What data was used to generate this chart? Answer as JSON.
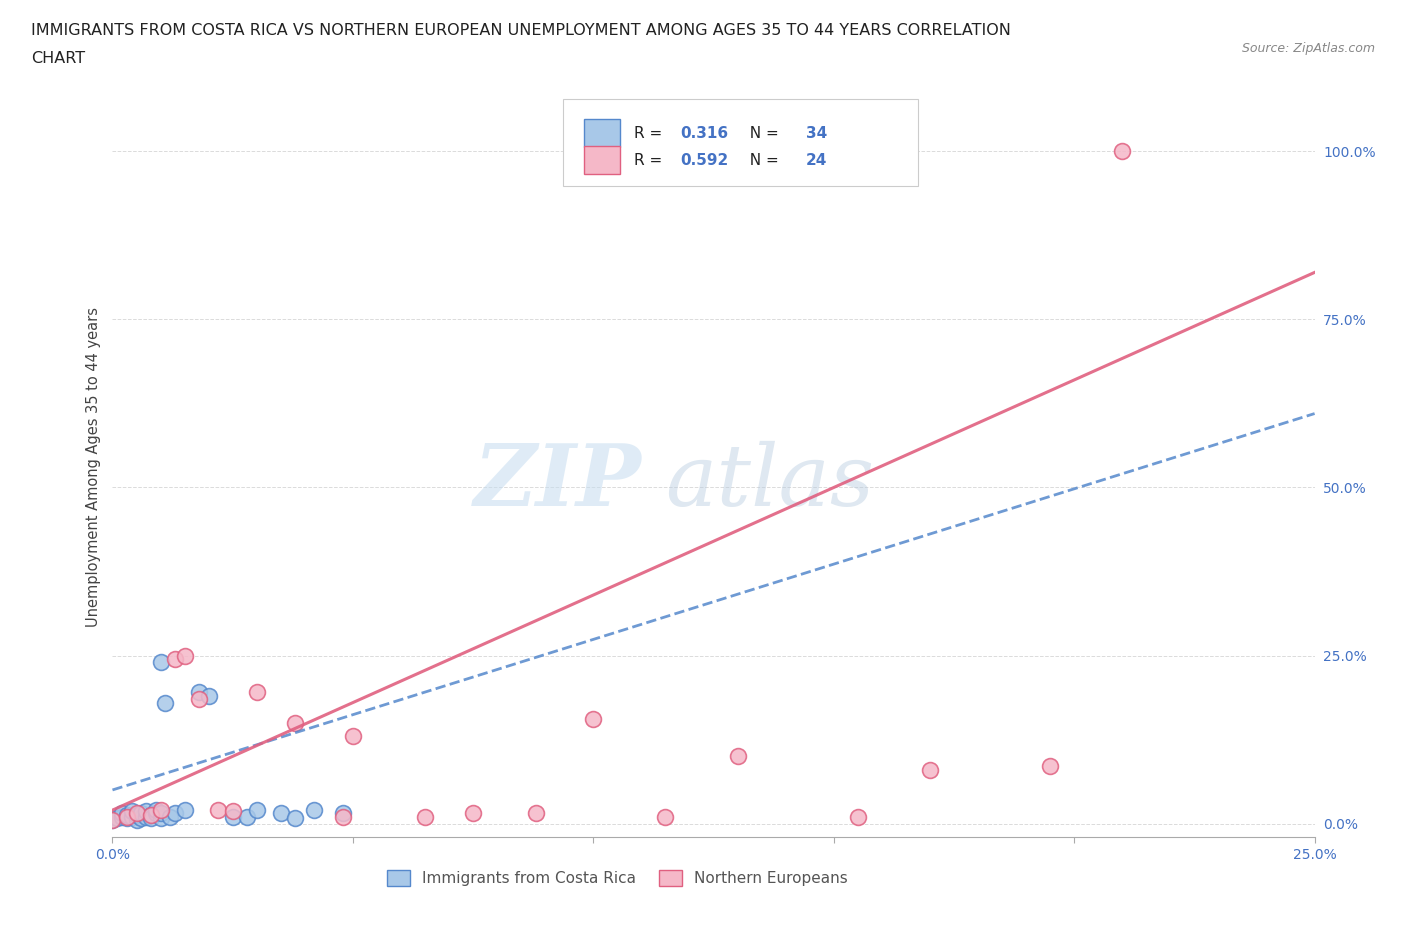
{
  "title_line1": "IMMIGRANTS FROM COSTA RICA VS NORTHERN EUROPEAN UNEMPLOYMENT AMONG AGES 35 TO 44 YEARS CORRELATION",
  "title_line2": "CHART",
  "source": "Source: ZipAtlas.com",
  "ylabel": "Unemployment Among Ages 35 to 44 years",
  "xlim": [
    0,
    0.25
  ],
  "ylim": [
    -0.02,
    1.08
  ],
  "ytick_vals": [
    0.0,
    0.25,
    0.5,
    0.75,
    1.0
  ],
  "ytick_labels": [
    "0.0%",
    "25.0%",
    "50.0%",
    "75.0%",
    "100.0%"
  ],
  "xtick_vals": [
    0.0,
    0.05,
    0.1,
    0.15,
    0.2,
    0.25
  ],
  "xtick_labels": [
    "0.0%",
    "",
    "",
    "",
    "",
    "25.0%"
  ],
  "color_blue_fill": "#a8c8e8",
  "color_blue_edge": "#5588cc",
  "color_pink_fill": "#f5b8c8",
  "color_pink_edge": "#e06080",
  "color_blue_line": "#5588cc",
  "color_pink_line": "#e06080",
  "color_text_blue": "#4472c4",
  "color_grid": "#cccccc",
  "blue_scatter_x": [
    0.0,
    0.001,
    0.002,
    0.002,
    0.003,
    0.003,
    0.004,
    0.004,
    0.005,
    0.005,
    0.006,
    0.006,
    0.007,
    0.007,
    0.008,
    0.008,
    0.009,
    0.009,
    0.01,
    0.01,
    0.011,
    0.012,
    0.013,
    0.015,
    0.018,
    0.02,
    0.025,
    0.028,
    0.03,
    0.035,
    0.038,
    0.042,
    0.048,
    0.01
  ],
  "blue_scatter_y": [
    0.005,
    0.008,
    0.01,
    0.015,
    0.008,
    0.012,
    0.01,
    0.018,
    0.006,
    0.012,
    0.008,
    0.015,
    0.01,
    0.018,
    0.012,
    0.008,
    0.015,
    0.02,
    0.008,
    0.015,
    0.18,
    0.01,
    0.015,
    0.02,
    0.195,
    0.19,
    0.01,
    0.01,
    0.02,
    0.015,
    0.008,
    0.02,
    0.015,
    0.24
  ],
  "pink_scatter_x": [
    0.0,
    0.003,
    0.005,
    0.008,
    0.01,
    0.013,
    0.015,
    0.018,
    0.022,
    0.025,
    0.03,
    0.038,
    0.048,
    0.05,
    0.065,
    0.075,
    0.088,
    0.1,
    0.115,
    0.13,
    0.155,
    0.17,
    0.195,
    0.21
  ],
  "pink_scatter_y": [
    0.005,
    0.01,
    0.015,
    0.012,
    0.02,
    0.245,
    0.25,
    0.185,
    0.02,
    0.018,
    0.195,
    0.15,
    0.01,
    0.13,
    0.01,
    0.015,
    0.015,
    0.155,
    0.01,
    0.1,
    0.01,
    0.08,
    0.085,
    1.0
  ],
  "blue_line_x": [
    0.0,
    0.25
  ],
  "blue_line_y": [
    0.05,
    0.61
  ],
  "pink_line_x": [
    0.0,
    0.25
  ],
  "pink_line_y": [
    0.02,
    0.82
  ],
  "background_color": "#ffffff"
}
